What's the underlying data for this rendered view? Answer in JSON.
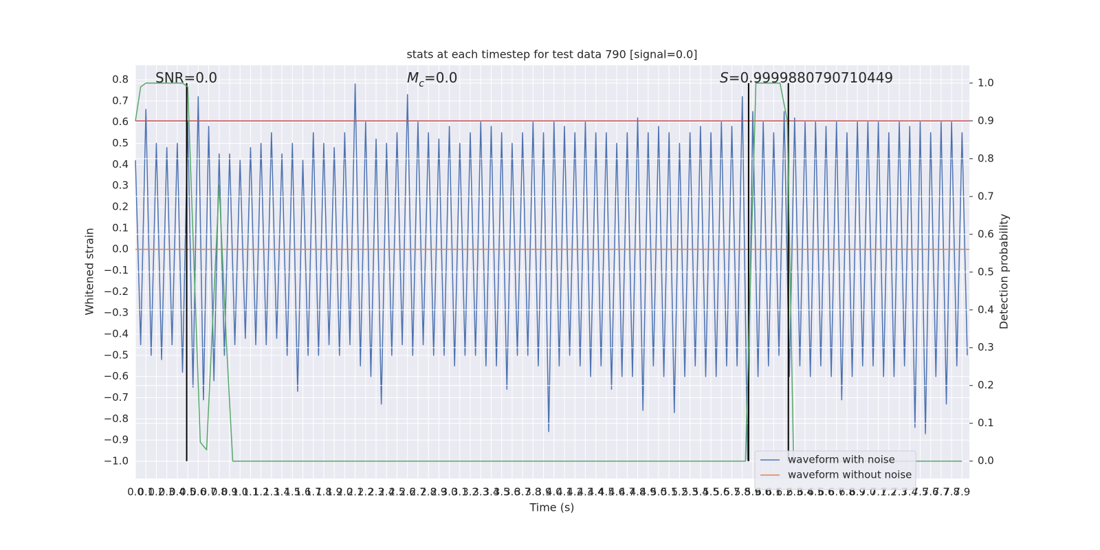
{
  "chart_data": {
    "type": "line",
    "title": "stats at each timestep for test data 790 [signal=0.0]",
    "xlabel": "Time (s)",
    "ylabel": "Whitened strain",
    "y2label": "Detection probability",
    "annotations": [
      [
        "SNR=0.0"
      ],
      [
        "M",
        "c",
        "=0.0"
      ],
      [
        "S",
        "=0.9999880790710449"
      ]
    ],
    "xlim": [
      0,
      7.97
    ],
    "ylim": [
      -1.081,
      0.868
    ],
    "y2lim": [
      -0.046,
      1.047
    ],
    "xticks": [
      {
        "value": 0,
        "label": "0.0"
      },
      0.1,
      0.2,
      0.3,
      0.4,
      0.5,
      0.6,
      0.7,
      0.8,
      0.9,
      {
        "value": 1,
        "label": "1.0"
      },
      1.1,
      1.2,
      1.3,
      1.4,
      1.5,
      1.6,
      1.7,
      1.8,
      1.9,
      {
        "value": 2,
        "label": "2.0"
      },
      2.1,
      2.2,
      2.3,
      2.4,
      2.5,
      2.6,
      2.7,
      2.8,
      2.9,
      {
        "value": 3,
        "label": "3.0"
      },
      3.1,
      3.2,
      3.3,
      3.4,
      3.5,
      3.6,
      3.7,
      3.8,
      3.9,
      {
        "value": 4,
        "label": "4.0"
      },
      4.1,
      4.2,
      4.3,
      4.4,
      4.5,
      4.6,
      4.7,
      4.8,
      4.9,
      {
        "value": 5,
        "label": "5.0"
      },
      5.1,
      5.2,
      5.3,
      5.4,
      5.5,
      5.6,
      5.7,
      5.8,
      5.9,
      {
        "value": 6,
        "label": "6.0"
      },
      6.1,
      6.2,
      6.3,
      6.4,
      6.5,
      6.6,
      6.7,
      6.8,
      6.9,
      {
        "value": 7,
        "label": "7.0"
      },
      7.1,
      7.2,
      7.3,
      7.4,
      7.5,
      7.6,
      7.7,
      7.8,
      7.9
    ],
    "yticks": [
      0.8,
      0.7,
      0.6,
      0.5,
      0.4,
      0.3,
      0.2,
      0.1,
      {
        "value": 0,
        "label": "0.0"
      },
      {
        "value": -0.1,
        "label": "−0.1"
      },
      {
        "value": -0.2,
        "label": "−0.2"
      },
      {
        "value": -0.3,
        "label": "−0.3"
      },
      {
        "value": -0.4,
        "label": "−0.4"
      },
      {
        "value": -0.5,
        "label": "−0.5"
      },
      {
        "value": -0.6,
        "label": "−0.6"
      },
      {
        "value": -0.7,
        "label": "−0.7"
      },
      {
        "value": -0.8,
        "label": "−0.8"
      },
      {
        "value": -0.9,
        "label": "−0.9"
      },
      {
        "value": -1,
        "label": "−1.0"
      }
    ],
    "y2ticks": [
      {
        "value": 0,
        "label": "0.0"
      },
      0.1,
      0.2,
      0.3,
      0.4,
      0.5,
      0.6,
      0.7,
      0.8,
      0.9,
      {
        "value": 1,
        "label": "1.0"
      }
    ],
    "grid": true,
    "legend": "lower right",
    "series": [
      {
        "name": "waveform with noise",
        "color": "#4c72b0",
        "x": [
          0,
          0.05,
          0.1,
          0.15,
          0.2,
          0.25,
          0.3,
          0.35,
          0.4,
          0.45,
          0.5,
          0.55,
          0.6,
          0.65,
          0.7,
          0.75,
          0.8,
          0.85,
          0.9,
          0.95,
          1,
          1.05,
          1.1,
          1.15,
          1.2,
          1.25,
          1.3,
          1.35,
          1.4,
          1.45,
          1.5,
          1.55,
          1.6,
          1.65,
          1.7,
          1.75,
          1.8,
          1.85,
          1.9,
          1.95,
          2,
          2.05,
          2.1,
          2.15,
          2.2,
          2.25,
          2.3,
          2.35,
          2.4,
          2.45,
          2.5,
          2.55,
          2.6,
          2.65,
          2.7,
          2.75,
          2.8,
          2.85,
          2.9,
          2.95,
          3,
          3.05,
          3.1,
          3.15,
          3.2,
          3.25,
          3.3,
          3.35,
          3.4,
          3.45,
          3.5,
          3.55,
          3.6,
          3.65,
          3.7,
          3.75,
          3.8,
          3.85,
          3.9,
          3.95,
          4,
          4.05,
          4.1,
          4.15,
          4.2,
          4.25,
          4.3,
          4.35,
          4.4,
          4.45,
          4.5,
          4.55,
          4.6,
          4.65,
          4.7,
          4.75,
          4.8,
          4.85,
          4.9,
          4.95,
          5,
          5.05,
          5.1,
          5.15,
          5.2,
          5.25,
          5.3,
          5.35,
          5.4,
          5.45,
          5.5,
          5.55,
          5.6,
          5.65,
          5.7,
          5.75,
          5.8,
          5.85,
          5.9,
          5.95,
          6,
          6.05,
          6.1,
          6.15,
          6.2,
          6.25,
          6.3,
          6.35,
          6.4,
          6.45,
          6.5,
          6.55,
          6.6,
          6.65,
          6.7,
          6.75,
          6.8,
          6.85,
          6.9,
          6.95,
          7,
          7.05,
          7.1,
          7.15,
          7.2,
          7.25,
          7.3,
          7.35,
          7.4,
          7.45,
          7.5,
          7.55,
          7.6,
          7.65,
          7.7,
          7.75,
          7.8,
          7.85,
          7.9,
          7.95
        ],
        "values": [
          0.42,
          -0.45,
          0.66,
          -0.5,
          0.5,
          -0.52,
          0.48,
          -0.45,
          0.5,
          -0.58,
          0.6,
          -0.65,
          0.72,
          -0.71,
          0.58,
          -0.62,
          0.45,
          -0.5,
          0.45,
          -0.45,
          0.42,
          -0.42,
          0.48,
          -0.45,
          0.5,
          -0.45,
          0.55,
          -0.42,
          0.45,
          -0.5,
          0.5,
          -0.67,
          0.42,
          -0.5,
          0.55,
          -0.5,
          0.5,
          -0.45,
          0.48,
          -0.5,
          0.55,
          -0.45,
          0.78,
          -0.55,
          0.6,
          -0.6,
          0.52,
          -0.73,
          0.5,
          -0.5,
          0.55,
          -0.45,
          0.73,
          -0.5,
          0.6,
          -0.45,
          0.55,
          -0.5,
          0.52,
          -0.5,
          0.58,
          -0.55,
          0.5,
          -0.5,
          0.55,
          -0.5,
          0.6,
          -0.55,
          0.58,
          -0.55,
          0.55,
          -0.66,
          0.5,
          -0.5,
          0.55,
          -0.5,
          0.6,
          -0.55,
          0.55,
          -0.86,
          0.6,
          -0.55,
          0.58,
          -0.5,
          0.55,
          -0.55,
          0.6,
          -0.6,
          0.55,
          -0.55,
          0.55,
          -0.66,
          0.5,
          -0.6,
          0.55,
          -0.6,
          0.62,
          -0.76,
          0.55,
          -0.55,
          0.58,
          -0.6,
          0.55,
          -0.77,
          0.5,
          -0.6,
          0.55,
          -0.55,
          0.58,
          -0.6,
          0.55,
          -0.6,
          0.6,
          -0.55,
          0.58,
          -0.55,
          0.72,
          -1.0,
          0.65,
          -0.6,
          0.6,
          -0.55,
          0.55,
          -0.5,
          0.65,
          -0.6,
          0.62,
          -0.55,
          0.6,
          -0.6,
          0.6,
          -0.55,
          0.58,
          -0.6,
          0.6,
          -0.71,
          0.55,
          -0.6,
          0.6,
          -0.55,
          0.6,
          -0.55,
          0.6,
          -0.6,
          0.55,
          -0.6,
          0.6,
          -0.55,
          0.58,
          -0.84,
          0.6,
          -0.87,
          0.55,
          -0.6,
          0.6,
          -0.73,
          0.6,
          -0.55,
          0.55,
          -0.5
        ]
      },
      {
        "name": "waveform without noise",
        "color": "#dd8452",
        "x": [
          0,
          7.97
        ],
        "values": [
          0,
          0
        ]
      },
      {
        "color": "#55a868",
        "axis": "y2",
        "x": [
          0,
          0.05,
          0.1,
          0.45,
          0.5,
          0.58,
          0.62,
          0.68,
          0.8,
          0.87,
          0.93,
          0.99,
          5.83,
          5.93,
          6.16,
          6.23,
          6.29,
          7.9
        ],
        "values": [
          0.9,
          0.99,
          1.0,
          1.0,
          0.99,
          0.36,
          0.05,
          0.03,
          0.73,
          0.31,
          0.0,
          0.0,
          0.0,
          1.0,
          1.0,
          0.9,
          0.0,
          0.0
        ]
      }
    ],
    "threshold": {
      "value": 0.9,
      "axis": "y2",
      "color": "#c44e52"
    },
    "vlines": {
      "x": [
        0.49,
        5.86,
        6.24
      ],
      "color": "#000000"
    }
  }
}
